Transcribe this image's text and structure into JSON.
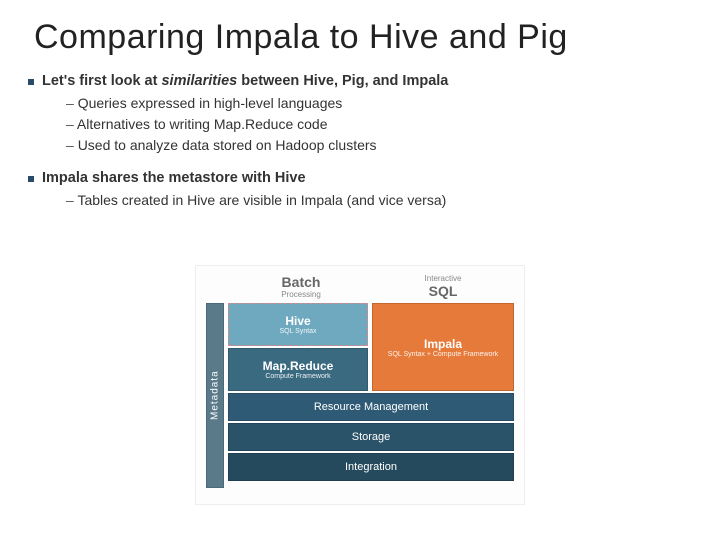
{
  "title": "Comparing Impala to Hive and Pig",
  "bullets": [
    {
      "text_before": "Let's first look at ",
      "bold": "similarities",
      "text_after": " between Hive, Pig, and Impala",
      "subs": [
        "Queries expressed in high-level languages",
        "Alternatives to writing Map.Reduce code",
        "Used to analyze data stored on Hadoop clusters"
      ]
    },
    {
      "text_before": "Impala shares the metastore with Hive",
      "bold": "",
      "text_after": "",
      "subs": [
        "Tables created in Hive are visible in Impala (and vice versa)"
      ]
    }
  ],
  "diagram": {
    "headers": {
      "left": {
        "line1": "Batch",
        "line2": "Processing"
      },
      "right": {
        "line1": "SQL",
        "line2_before": "Interactive"
      }
    },
    "metadata_label": "Metadata",
    "blocks": {
      "hive": {
        "title": "Hive",
        "sub": "SQL Syntax",
        "color": "#6fa9bf"
      },
      "mapreduce": {
        "title": "Map.Reduce",
        "sub": "Compute Framework",
        "color": "#3a6a80"
      },
      "impala": {
        "title": "Impala",
        "sub": "SQL Syntax + Compute Framework",
        "color": "#e67a3a"
      },
      "resource": {
        "title": "Resource Management",
        "color": "#2f5a75"
      },
      "storage": {
        "title": "Storage",
        "color": "#2a5268"
      },
      "integration": {
        "title": "Integration",
        "color": "#254a5e"
      },
      "metadata_color": "#5a7a8a"
    }
  }
}
